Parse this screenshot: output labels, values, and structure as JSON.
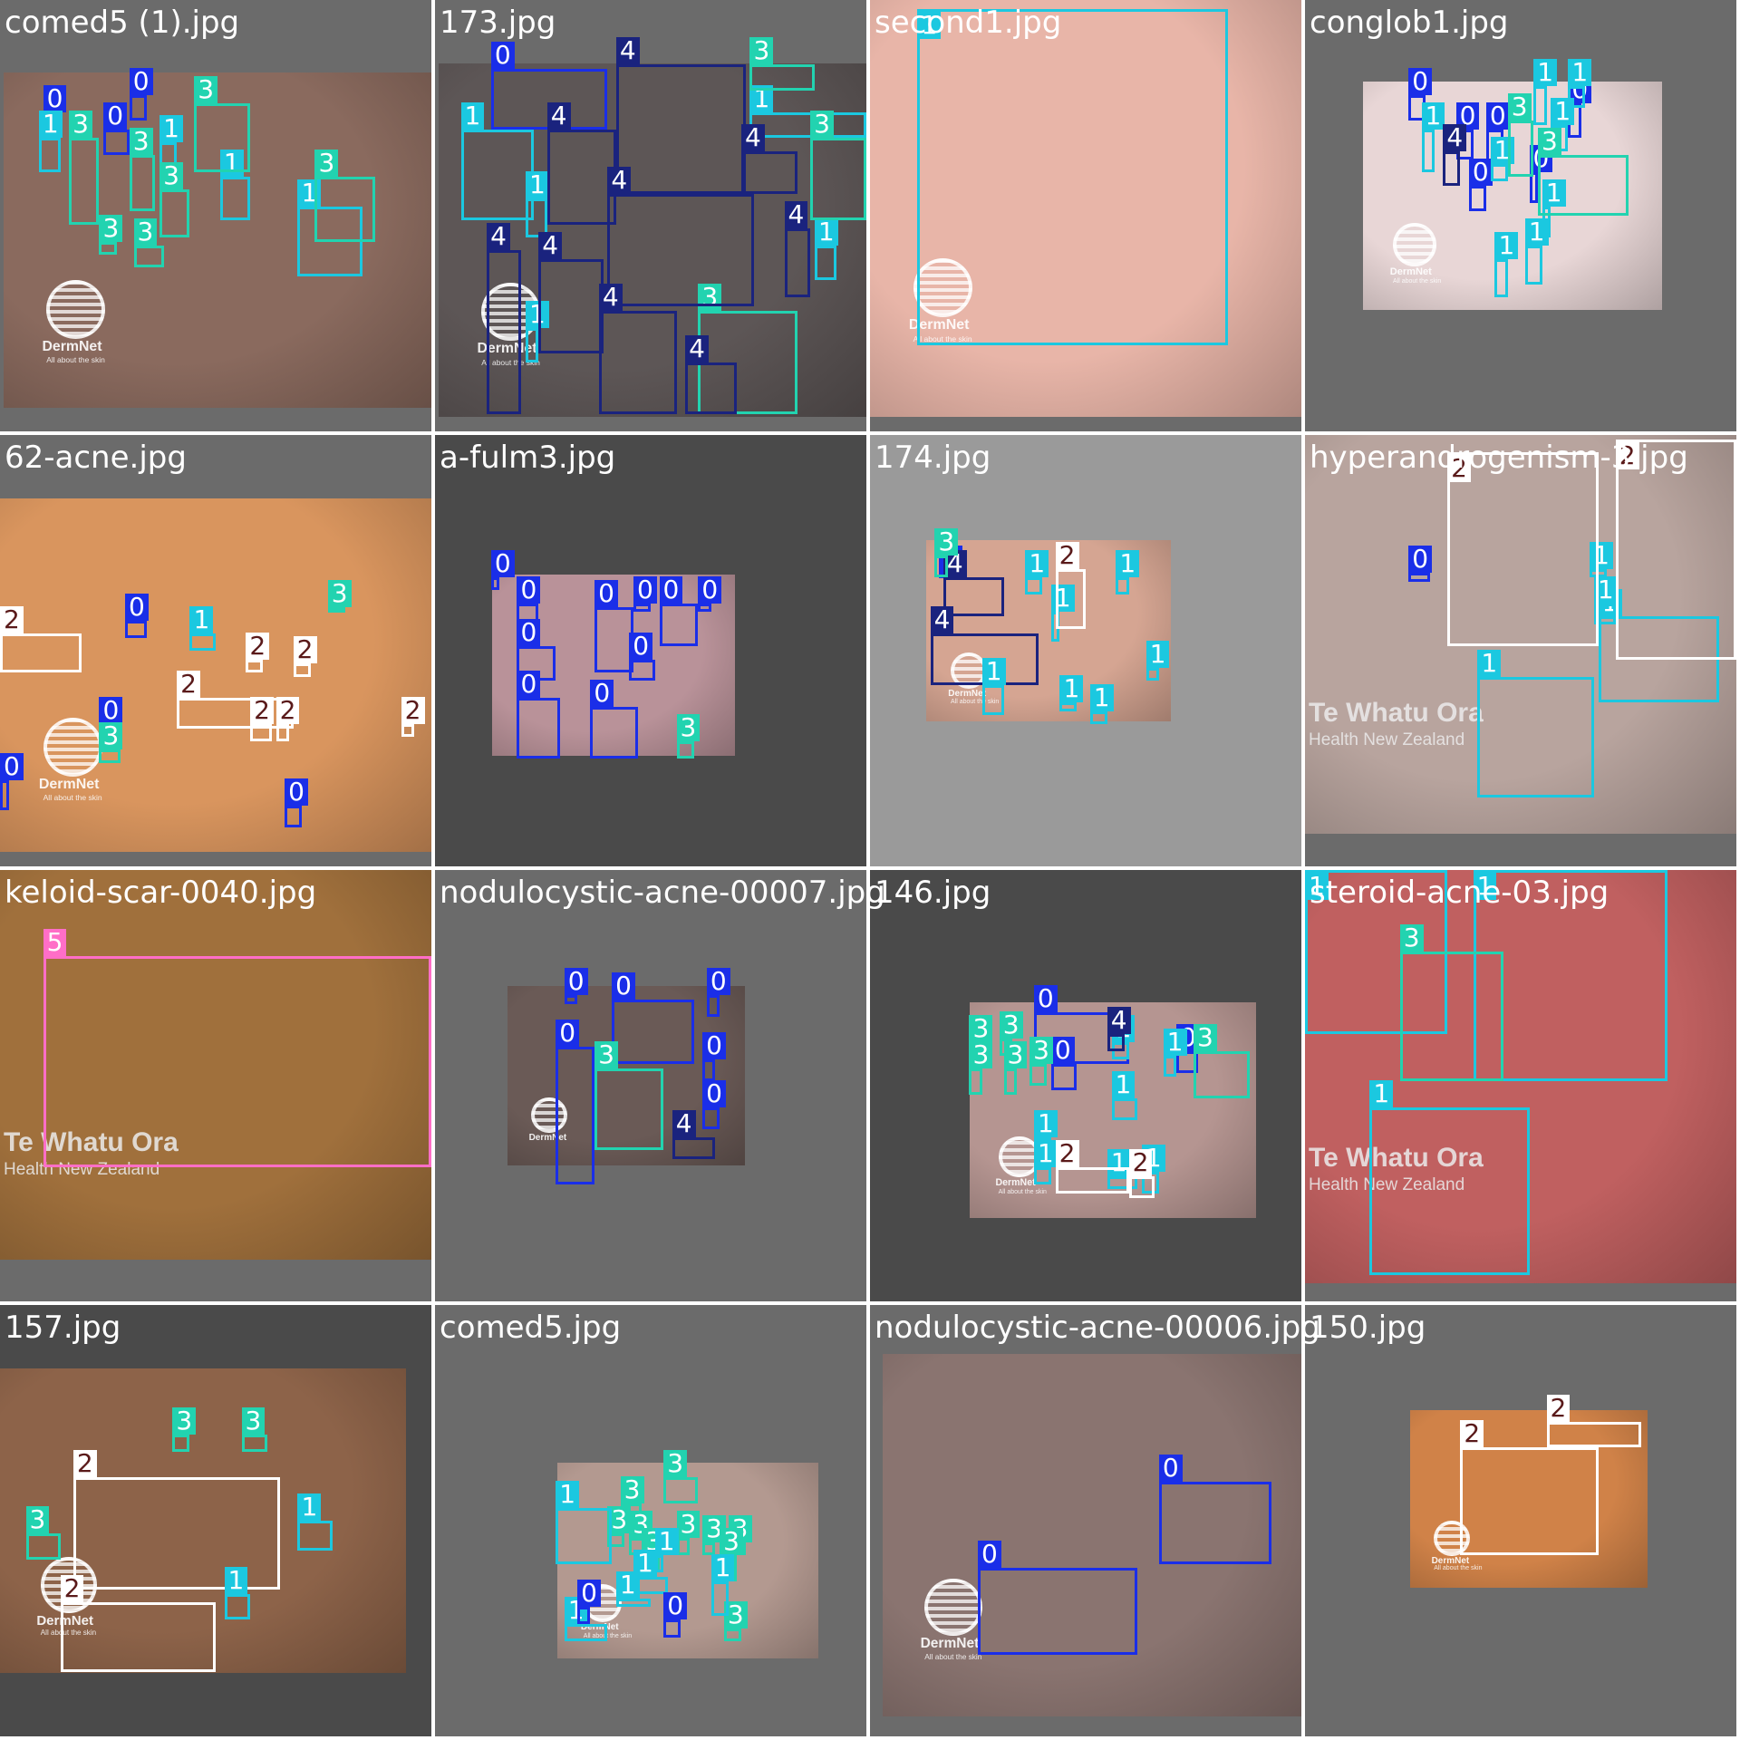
{
  "class_colors": {
    "0": "#1a2ee8",
    "1": "#1bc8e0",
    "2": "#ffffff",
    "3": "#22d3b0",
    "4": "#1a237e",
    "5": "#ff6ec7"
  },
  "label_bg": {
    "0": "#1a2ee8",
    "1": "#1bc8e0",
    "2": "#ffffff",
    "3": "#22d3b0",
    "4": "#1a237e",
    "5": "#ff6ec7"
  },
  "label_text": {
    "0": "#ffffff",
    "1": "#ffffff",
    "2": "#5a1a1a",
    "3": "#ffffff",
    "4": "#ffffff",
    "5": "#ffffff"
  },
  "images": [
    {
      "title": "comed5 (1).jpg",
      "skin": "#8a6a5e",
      "watermark": "DermNet",
      "watermark_sub": "All about the skin",
      "boxes": [
        [
          "0",
          0.1,
          0.26,
          0.14,
          0.18
        ],
        [
          "0",
          0.3,
          0.22,
          0.34,
          0.28
        ],
        [
          "0",
          0.24,
          0.3,
          0.3,
          0.36
        ],
        [
          "1",
          0.09,
          0.32,
          0.14,
          0.4
        ],
        [
          "1",
          0.37,
          0.33,
          0.41,
          0.42
        ],
        [
          "1",
          0.51,
          0.41,
          0.58,
          0.51
        ],
        [
          "1",
          0.69,
          0.48,
          0.84,
          0.64
        ],
        [
          "3",
          0.16,
          0.32,
          0.23,
          0.52
        ],
        [
          "3",
          0.3,
          0.36,
          0.36,
          0.49
        ],
        [
          "3",
          0.45,
          0.24,
          0.58,
          0.4
        ],
        [
          "3",
          0.37,
          0.44,
          0.44,
          0.55
        ],
        [
          "3",
          0.23,
          0.56,
          0.27,
          0.59
        ],
        [
          "3",
          0.31,
          0.57,
          0.38,
          0.62
        ],
        [
          "3",
          0.73,
          0.41,
          0.87,
          0.56
        ]
      ]
    },
    {
      "title": "173.jpg",
      "skin": "#5d5656",
      "watermark": "DermNet",
      "watermark_sub": "All about the skin",
      "boxes": [
        [
          "0",
          0.13,
          0.16,
          0.4,
          0.3
        ],
        [
          "1",
          0.06,
          0.3,
          0.23,
          0.51
        ],
        [
          "1",
          0.21,
          0.46,
          0.26,
          0.55
        ],
        [
          "1",
          0.21,
          0.76,
          0.24,
          0.84
        ],
        [
          "1",
          0.88,
          0.57,
          0.93,
          0.65
        ],
        [
          "1",
          0.73,
          0.26,
          1.0,
          0.32
        ],
        [
          "3",
          0.73,
          0.15,
          0.88,
          0.21
        ],
        [
          "3",
          0.61,
          0.72,
          0.84,
          0.96
        ],
        [
          "3",
          0.87,
          0.32,
          1.0,
          0.51
        ],
        [
          "4",
          0.26,
          0.3,
          0.42,
          0.52
        ],
        [
          "4",
          0.42,
          0.15,
          0.72,
          0.45
        ],
        [
          "4",
          0.4,
          0.45,
          0.74,
          0.71
        ],
        [
          "4",
          0.12,
          0.58,
          0.2,
          0.96
        ],
        [
          "4",
          0.24,
          0.6,
          0.39,
          0.82
        ],
        [
          "4",
          0.38,
          0.72,
          0.56,
          0.96
        ],
        [
          "4",
          0.58,
          0.84,
          0.7,
          0.96
        ],
        [
          "4",
          0.71,
          0.35,
          0.84,
          0.45
        ],
        [
          "4",
          0.81,
          0.53,
          0.87,
          0.69
        ]
      ]
    },
    {
      "title": "second1.jpg",
      "skin": "#e8b5a8",
      "watermark": "DermNet",
      "watermark_sub": "All about the skin",
      "boxes": [
        [
          "1",
          0.11,
          0.02,
          0.83,
          0.8
        ]
      ]
    },
    {
      "title": "conglob1.jpg",
      "skin": "#e8d6d6",
      "watermark": "DermNet",
      "watermark_sub": "All about the skin",
      "boxes": [
        [
          "0",
          0.24,
          0.22,
          0.28,
          0.28
        ],
        [
          "0",
          0.35,
          0.3,
          0.39,
          0.37
        ],
        [
          "0",
          0.42,
          0.3,
          0.46,
          0.38
        ],
        [
          "0",
          0.61,
          0.24,
          0.64,
          0.32
        ],
        [
          "0",
          0.52,
          0.4,
          0.54,
          0.47
        ],
        [
          "0",
          0.38,
          0.43,
          0.42,
          0.49
        ],
        [
          "1",
          0.27,
          0.3,
          0.3,
          0.4
        ],
        [
          "1",
          0.53,
          0.2,
          0.56,
          0.29
        ],
        [
          "1",
          0.61,
          0.2,
          0.65,
          0.25
        ],
        [
          "1",
          0.43,
          0.38,
          0.47,
          0.42
        ],
        [
          "1",
          0.57,
          0.29,
          0.61,
          0.35
        ],
        [
          "1",
          0.55,
          0.48,
          0.57,
          0.55
        ],
        [
          "1",
          0.44,
          0.6,
          0.47,
          0.69
        ],
        [
          "1",
          0.51,
          0.57,
          0.55,
          0.66
        ],
        [
          "3",
          0.47,
          0.28,
          0.53,
          0.41
        ],
        [
          "3",
          0.54,
          0.36,
          0.75,
          0.5
        ],
        [
          "4",
          0.32,
          0.35,
          0.36,
          0.43
        ]
      ]
    },
    {
      "title": "62-acne.jpg",
      "skin": "#d9955e",
      "watermark": "DermNet",
      "watermark_sub": "All about the skin",
      "boxes": [
        [
          "0",
          0.29,
          0.43,
          0.34,
          0.47
        ],
        [
          "0",
          0.23,
          0.67,
          0.27,
          0.73
        ],
        [
          "0",
          0.66,
          0.86,
          0.7,
          0.91
        ],
        [
          "0",
          0.0,
          0.8,
          0.02,
          0.87
        ],
        [
          "1",
          0.44,
          0.46,
          0.5,
          0.5
        ],
        [
          "2",
          0.0,
          0.46,
          0.19,
          0.55
        ],
        [
          "2",
          0.57,
          0.52,
          0.61,
          0.55
        ],
        [
          "2",
          0.68,
          0.53,
          0.72,
          0.56
        ],
        [
          "2",
          0.41,
          0.61,
          0.68,
          0.68
        ],
        [
          "2",
          0.58,
          0.67,
          0.63,
          0.71
        ],
        [
          "2",
          0.64,
          0.67,
          0.67,
          0.71
        ],
        [
          "2",
          0.93,
          0.67,
          0.96,
          0.7
        ],
        [
          "3",
          0.76,
          0.4,
          0.8,
          0.41
        ],
        [
          "3",
          0.23,
          0.73,
          0.28,
          0.76
        ]
      ]
    },
    {
      "title": "a-fulm3.jpg",
      "skin": "#b99299",
      "watermark": "",
      "watermark_sub": "",
      "boxes": [
        [
          "0",
          0.13,
          0.33,
          0.15,
          0.36
        ],
        [
          "0",
          0.19,
          0.39,
          0.24,
          0.49
        ],
        [
          "0",
          0.37,
          0.4,
          0.46,
          0.55
        ],
        [
          "0",
          0.46,
          0.39,
          0.5,
          0.41
        ],
        [
          "0",
          0.52,
          0.39,
          0.61,
          0.49
        ],
        [
          "0",
          0.61,
          0.39,
          0.64,
          0.41
        ],
        [
          "0",
          0.19,
          0.49,
          0.28,
          0.57
        ],
        [
          "0",
          0.45,
          0.52,
          0.51,
          0.57
        ],
        [
          "0",
          0.19,
          0.61,
          0.29,
          0.75
        ],
        [
          "0",
          0.36,
          0.63,
          0.47,
          0.75
        ],
        [
          "3",
          0.56,
          0.71,
          0.6,
          0.75
        ]
      ]
    },
    {
      "title": "174.jpg",
      "skin": "#d5a592",
      "watermark": "DermNet",
      "watermark_sub": "All about the skin",
      "boxes": [
        [
          "0",
          0.16,
          0.32,
          0.22,
          0.33
        ],
        [
          "4",
          0.17,
          0.33,
          0.31,
          0.42
        ],
        [
          "4",
          0.14,
          0.46,
          0.39,
          0.58
        ],
        [
          "3",
          0.15,
          0.28,
          0.18,
          0.33
        ],
        [
          "1",
          0.36,
          0.33,
          0.4,
          0.37
        ],
        [
          "1",
          0.57,
          0.33,
          0.6,
          0.37
        ],
        [
          "1",
          0.42,
          0.41,
          0.44,
          0.48
        ],
        [
          "1",
          0.64,
          0.54,
          0.67,
          0.57
        ],
        [
          "1",
          0.26,
          0.58,
          0.31,
          0.65
        ],
        [
          "1",
          0.44,
          0.62,
          0.48,
          0.64
        ],
        [
          "1",
          0.51,
          0.64,
          0.55,
          0.67
        ],
        [
          "2",
          0.43,
          0.31,
          0.5,
          0.45
        ]
      ]
    },
    {
      "title": "hyperandrogenism-3.jpg",
      "skin": "#b8a49e",
      "watermark": "Te Whatu Ora",
      "watermark_sub": "Health New Zealand",
      "boxes": [
        [
          "0",
          0.24,
          0.32,
          0.29,
          0.34
        ],
        [
          "1",
          0.66,
          0.31,
          0.7,
          0.33
        ],
        [
          "1",
          0.68,
          0.42,
          0.96,
          0.62
        ],
        [
          "1",
          0.4,
          0.56,
          0.67,
          0.84
        ],
        [
          "1",
          0.67,
          0.39,
          0.72,
          0.44
        ],
        [
          "2",
          0.33,
          0.04,
          0.68,
          0.49
        ],
        [
          "2",
          0.72,
          0.01,
          1.0,
          0.52
        ]
      ]
    },
    {
      "title": "keloid-scar-0040.jpg",
      "skin": "#a0703c",
      "watermark": "Te Whatu Ora",
      "watermark_sub": "Health New Zealand",
      "boxes": [
        [
          "5",
          0.1,
          0.2,
          1.0,
          0.69
        ]
      ]
    },
    {
      "title": "nodulocystic-acne-00007.jpg",
      "skin": "#6a5a56",
      "watermark": "DermNet",
      "watermark_sub": "",
      "boxes": [
        [
          "0",
          0.3,
          0.29,
          0.33,
          0.31
        ],
        [
          "0",
          0.41,
          0.3,
          0.6,
          0.45
        ],
        [
          "0",
          0.63,
          0.29,
          0.66,
          0.34
        ],
        [
          "0",
          0.28,
          0.41,
          0.37,
          0.73
        ],
        [
          "0",
          0.62,
          0.44,
          0.65,
          0.49
        ],
        [
          "0",
          0.62,
          0.55,
          0.66,
          0.6
        ],
        [
          "3",
          0.37,
          0.46,
          0.53,
          0.65
        ],
        [
          "4",
          0.55,
          0.62,
          0.65,
          0.67
        ]
      ]
    },
    {
      "title": "146.jpg",
      "skin": "#b59591",
      "watermark": "DermNet",
      "watermark_sub": "All about the skin",
      "boxes": [
        [
          "0",
          0.38,
          0.33,
          0.6,
          0.45
        ],
        [
          "0",
          0.42,
          0.45,
          0.48,
          0.51
        ],
        [
          "0",
          0.71,
          0.42,
          0.76,
          0.47
        ],
        [
          "1",
          0.56,
          0.4,
          0.6,
          0.44
        ],
        [
          "1",
          0.68,
          0.43,
          0.71,
          0.48
        ],
        [
          "1",
          0.56,
          0.53,
          0.62,
          0.58
        ],
        [
          "1",
          0.38,
          0.62,
          0.42,
          0.69
        ],
        [
          "1",
          0.38,
          0.69,
          0.42,
          0.73
        ],
        [
          "1",
          0.55,
          0.71,
          0.62,
          0.74
        ],
        [
          "1",
          0.63,
          0.7,
          0.67,
          0.75
        ],
        [
          "3",
          0.23,
          0.4,
          0.27,
          0.43
        ],
        [
          "3",
          0.3,
          0.39,
          0.33,
          0.43
        ],
        [
          "3",
          0.23,
          0.46,
          0.26,
          0.52
        ],
        [
          "3",
          0.31,
          0.46,
          0.34,
          0.52
        ],
        [
          "3",
          0.37,
          0.45,
          0.41,
          0.5
        ],
        [
          "3",
          0.75,
          0.42,
          0.88,
          0.53
        ],
        [
          "4",
          0.55,
          0.38,
          0.59,
          0.42
        ],
        [
          "2",
          0.43,
          0.69,
          0.6,
          0.75
        ],
        [
          "2",
          0.6,
          0.71,
          0.66,
          0.76
        ]
      ]
    },
    {
      "title": "steroid-acne-03.jpg",
      "skin": "#c06060",
      "watermark": "Te Whatu Ora",
      "watermark_sub": "Health New Zealand",
      "boxes": [
        [
          "1",
          0.0,
          0.0,
          0.33,
          0.38
        ],
        [
          "1",
          0.39,
          0.0,
          0.84,
          0.49
        ],
        [
          "1",
          0.15,
          0.55,
          0.52,
          0.94
        ],
        [
          "3",
          0.22,
          0.19,
          0.46,
          0.49
        ]
      ]
    },
    {
      "title": "157.jpg",
      "skin": "#8d6349",
      "watermark": "DermNet",
      "watermark_sub": "All about the skin",
      "boxes": [
        [
          "3",
          0.4,
          0.3,
          0.44,
          0.34
        ],
        [
          "3",
          0.56,
          0.3,
          0.62,
          0.34
        ],
        [
          "3",
          0.06,
          0.53,
          0.14,
          0.59
        ],
        [
          "2",
          0.17,
          0.4,
          0.65,
          0.66
        ],
        [
          "2",
          0.14,
          0.69,
          0.5,
          0.85
        ],
        [
          "1",
          0.69,
          0.5,
          0.77,
          0.57
        ],
        [
          "1",
          0.52,
          0.67,
          0.58,
          0.73
        ]
      ]
    },
    {
      "title": "comed5.jpg",
      "skin": "#b39990",
      "watermark": "DermNet",
      "watermark_sub": "All about the skin",
      "boxes": [
        [
          "3",
          0.53,
          0.4,
          0.61,
          0.46
        ],
        [
          "3",
          0.43,
          0.46,
          0.48,
          0.51
        ],
        [
          "3",
          0.4,
          0.53,
          0.44,
          0.56
        ],
        [
          "3",
          0.45,
          0.54,
          0.51,
          0.58
        ],
        [
          "3",
          0.48,
          0.58,
          0.52,
          0.62
        ],
        [
          "3",
          0.56,
          0.54,
          0.59,
          0.58
        ],
        [
          "3",
          0.62,
          0.55,
          0.65,
          0.58
        ],
        [
          "3",
          0.68,
          0.55,
          0.72,
          0.58
        ],
        [
          "3",
          0.66,
          0.58,
          0.7,
          0.64
        ],
        [
          "3",
          0.67,
          0.75,
          0.71,
          0.78
        ],
        [
          "1",
          0.28,
          0.47,
          0.41,
          0.6
        ],
        [
          "1",
          0.51,
          0.58,
          0.53,
          0.62
        ],
        [
          "1",
          0.46,
          0.63,
          0.54,
          0.67
        ],
        [
          "1",
          0.42,
          0.68,
          0.5,
          0.7
        ],
        [
          "1",
          0.64,
          0.64,
          0.68,
          0.72
        ],
        [
          "1",
          0.3,
          0.74,
          0.4,
          0.78
        ],
        [
          "0",
          0.33,
          0.7,
          0.36,
          0.74
        ],
        [
          "0",
          0.53,
          0.73,
          0.57,
          0.77
        ]
      ]
    },
    {
      "title": "nodulocystic-acne-00006.jpg",
      "skin": "#8a7470",
      "watermark": "DermNet",
      "watermark_sub": "All about the skin",
      "boxes": [
        [
          "0",
          0.67,
          0.41,
          0.93,
          0.6
        ],
        [
          "0",
          0.25,
          0.61,
          0.62,
          0.81
        ]
      ]
    },
    {
      "title": "150.jpg",
      "skin": "#d08248",
      "watermark": "DermNet",
      "watermark_sub": "All about the skin",
      "boxes": [
        [
          "2",
          0.56,
          0.27,
          0.78,
          0.33
        ],
        [
          "2",
          0.36,
          0.33,
          0.68,
          0.58
        ]
      ]
    }
  ]
}
